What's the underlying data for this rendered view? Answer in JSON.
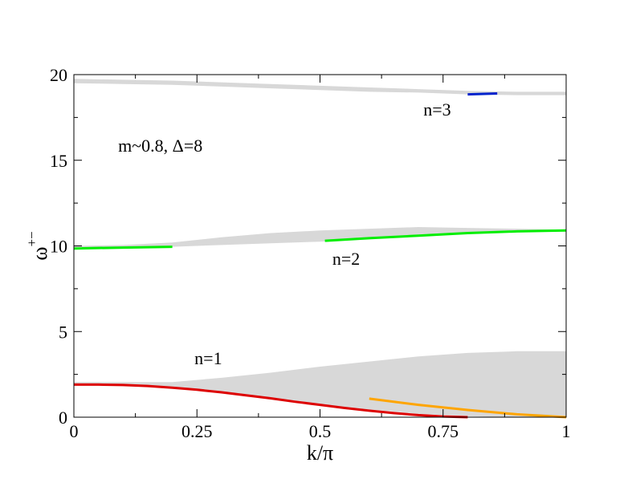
{
  "chart_data": {
    "type": "line",
    "xlabel": "k/π",
    "ylabel": "ω",
    "ylabel_superscript": "+−",
    "xlim": [
      0,
      1
    ],
    "ylim": [
      0,
      20
    ],
    "x_ticks": [
      0,
      0.25,
      0.5,
      0.75,
      1
    ],
    "x_tick_labels": [
      "0",
      "0.25",
      "0.5",
      "0.75",
      "1"
    ],
    "y_ticks": [
      0,
      5,
      10,
      15,
      20
    ],
    "y_tick_labels": [
      "0",
      "5",
      "10",
      "15",
      "20"
    ],
    "grid": false,
    "annotations": [
      {
        "text": "m~0.8, Δ=8",
        "x": 0.09,
        "y": 15.5
      },
      {
        "text": "n=3",
        "x": 0.71,
        "y": 17.6
      },
      {
        "text": "n=2",
        "x": 0.525,
        "y": 8.9
      },
      {
        "text": "n=1",
        "x": 0.245,
        "y": 3.1
      }
    ],
    "bands": [
      {
        "color": "#d8d8d8",
        "x": [
          0,
          0.1,
          0.2,
          0.3,
          0.4,
          0.5,
          0.6,
          0.7,
          0.8,
          0.9,
          1.0
        ],
        "lower": [
          19.5,
          19.45,
          19.4,
          19.3,
          19.2,
          19.1,
          19.0,
          18.95,
          18.85,
          18.8,
          18.8
        ],
        "upper": [
          19.75,
          19.7,
          19.65,
          19.55,
          19.45,
          19.35,
          19.25,
          19.15,
          19.05,
          19.0,
          19.0
        ]
      },
      {
        "color": "#d8d8d8",
        "x": [
          0,
          0.1,
          0.2,
          0.3,
          0.4,
          0.5,
          0.6,
          0.7,
          0.8,
          0.9,
          1.0
        ],
        "lower": [
          9.85,
          9.9,
          9.95,
          10.05,
          10.15,
          10.25,
          10.4,
          10.55,
          10.7,
          10.8,
          10.85
        ],
        "upper": [
          10.0,
          10.05,
          10.2,
          10.5,
          10.75,
          10.9,
          11.0,
          11.1,
          11.05,
          11.0,
          10.95
        ]
      },
      {
        "color": "#d8d8d8",
        "x": [
          0,
          0.1,
          0.2,
          0.3,
          0.4,
          0.5,
          0.6,
          0.7,
          0.8,
          0.85,
          0.9,
          0.95,
          1.0
        ],
        "lower": [
          1.85,
          1.85,
          1.75,
          1.45,
          1.1,
          0.75,
          0.45,
          0.2,
          0.05,
          0.02,
          0.0,
          0.0,
          0.0
        ],
        "upper": [
          2.05,
          2.05,
          2.05,
          2.3,
          2.6,
          2.95,
          3.25,
          3.55,
          3.75,
          3.8,
          3.85,
          3.85,
          3.85
        ]
      }
    ],
    "series": [
      {
        "color": "#dd0000",
        "x": [
          0,
          0.05,
          0.1,
          0.15,
          0.2,
          0.25,
          0.3,
          0.35,
          0.4,
          0.45,
          0.5,
          0.55,
          0.6,
          0.65,
          0.7,
          0.75,
          0.8
        ],
        "y": [
          1.9,
          1.9,
          1.88,
          1.82,
          1.72,
          1.6,
          1.45,
          1.28,
          1.1,
          0.9,
          0.72,
          0.54,
          0.38,
          0.24,
          0.12,
          0.04,
          0.0
        ]
      },
      {
        "color": "#ffa500",
        "x": [
          0.6,
          0.7,
          0.8,
          0.9,
          1.0
        ],
        "y": [
          1.08,
          0.72,
          0.42,
          0.17,
          0.0
        ]
      },
      {
        "color": "#00ee00",
        "x": [
          0,
          0.1,
          0.2
        ],
        "y": [
          9.85,
          9.9,
          9.95
        ]
      },
      {
        "color": "#00ee00",
        "x": [
          0.51,
          0.6,
          0.7,
          0.8,
          0.9,
          1.0
        ],
        "y": [
          10.3,
          10.45,
          10.6,
          10.75,
          10.85,
          10.9
        ]
      },
      {
        "color": "#0022cc",
        "x": [
          0.8,
          0.86
        ],
        "y": [
          18.85,
          18.9
        ]
      }
    ]
  }
}
